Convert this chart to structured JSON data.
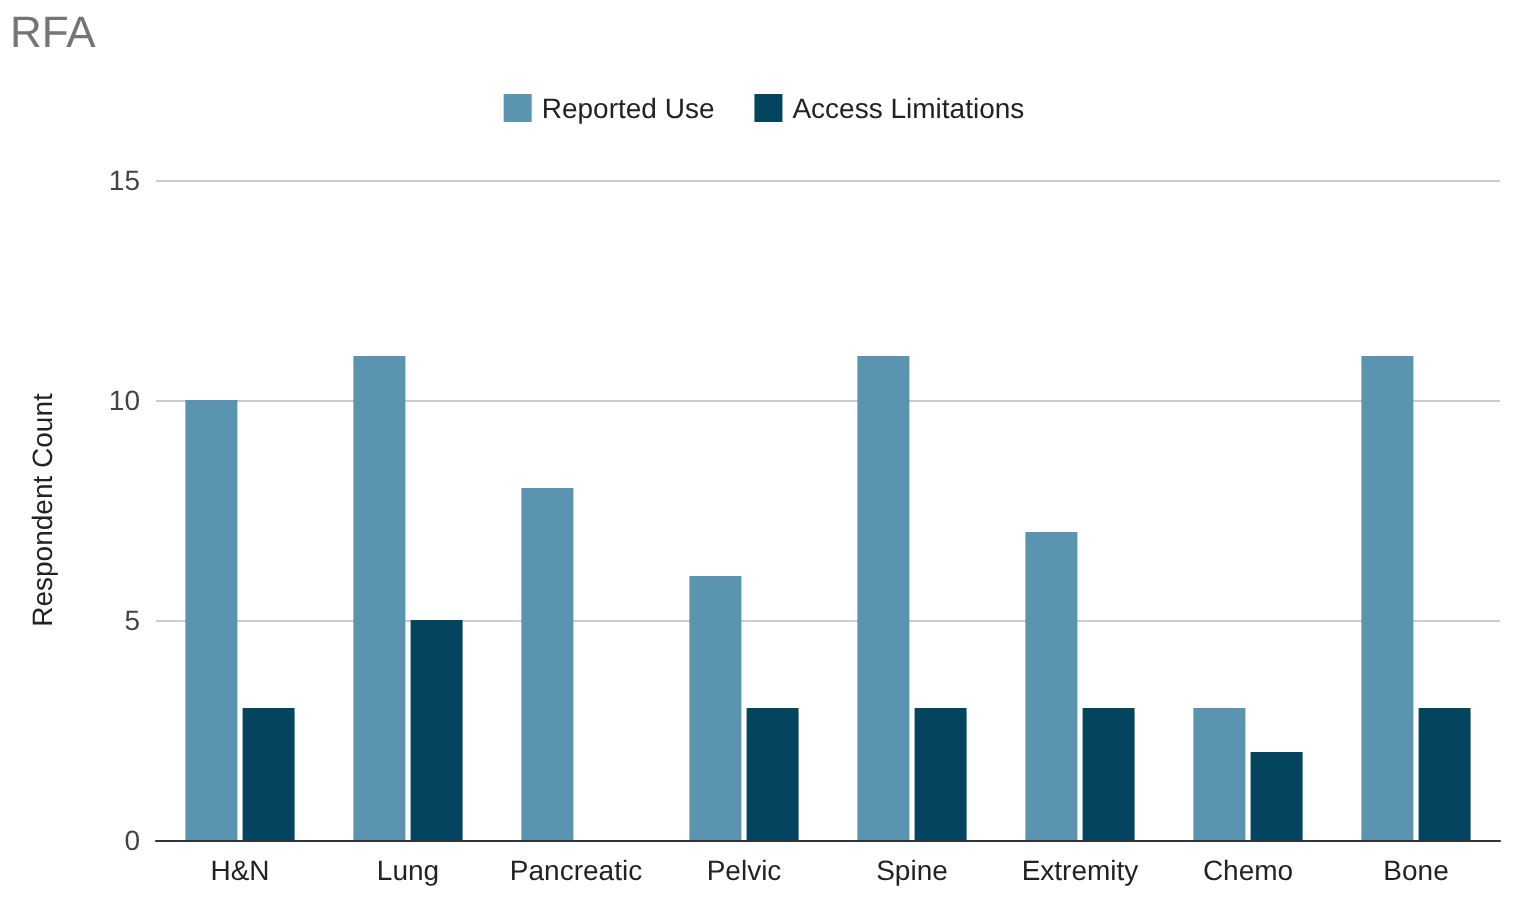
{
  "chart_data": {
    "type": "bar",
    "title": "RFA",
    "ylabel": "Respondent Count",
    "categories": [
      "H&N",
      "Lung",
      "Pancreatic",
      "Pelvic",
      "Spine",
      "Extremity",
      "Chemo",
      "Bone"
    ],
    "series": [
      {
        "name": "Reported Use",
        "color": "#5b94b1",
        "values": [
          10,
          11,
          8,
          6,
          11,
          7,
          3,
          11
        ]
      },
      {
        "name": "Access Limitations",
        "color": "#03455f",
        "values": [
          3,
          5,
          0,
          3,
          3,
          3,
          2,
          3
        ]
      }
    ],
    "ylim": [
      0,
      15
    ],
    "yticks": [
      0,
      5,
      10,
      15
    ],
    "grid": "y",
    "legend": "top"
  }
}
